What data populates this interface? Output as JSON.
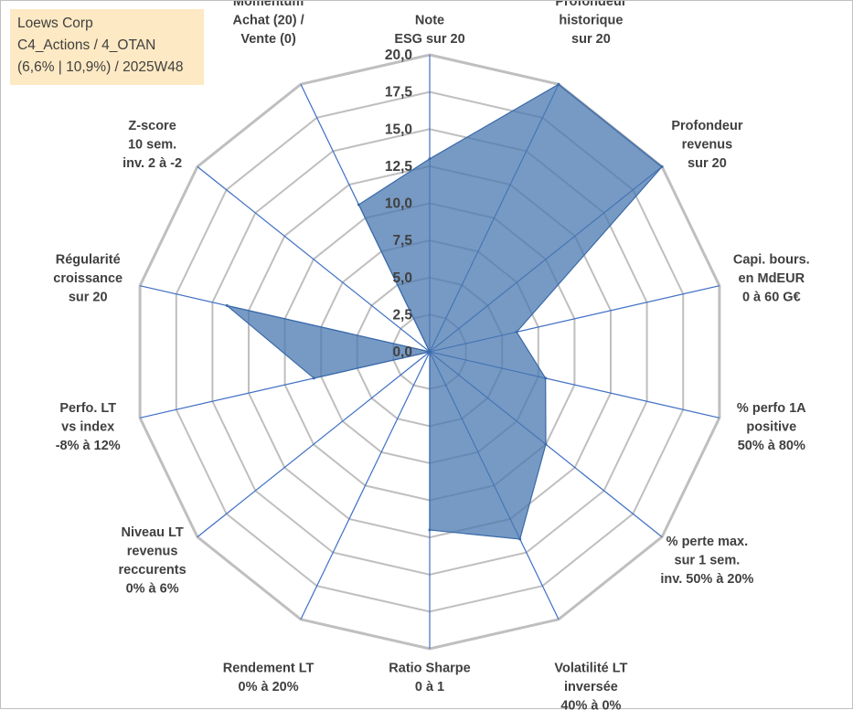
{
  "title_box": {
    "line1": "Loews Corp",
    "line2": "C4_Actions / 4_OTAN",
    "line3": "(6,6% | 10,9%) / 2025W48"
  },
  "chart_data": {
    "type": "radar",
    "rmin": 0,
    "rmax": 20,
    "ticks": [
      "0,0",
      "2,5",
      "5,0",
      "7,5",
      "10,0",
      "12,5",
      "15,0",
      "17,5",
      "20,0"
    ],
    "axes": [
      {
        "label": [
          "Note",
          "ESG sur 20"
        ]
      },
      {
        "label": [
          "Profondeur",
          "historique",
          "sur 20"
        ]
      },
      {
        "label": [
          "Profondeur",
          "revenus",
          "sur 20"
        ]
      },
      {
        "label": [
          "Capi. bours.",
          "en MdEUR",
          "0 à 60 G€"
        ]
      },
      {
        "label": [
          "% perfo 1A",
          "positive",
          "50% à 80%"
        ]
      },
      {
        "label": [
          "% perte max.",
          "sur 1 sem.",
          "inv. 50% à 20%"
        ]
      },
      {
        "label": [
          "Volatilité LT",
          "inversée",
          "40% à 0%"
        ]
      },
      {
        "label": [
          "Ratio Sharpe",
          "0 à 1"
        ]
      },
      {
        "label": [
          "Rendement LT",
          "0% à 20%"
        ]
      },
      {
        "label": [
          "Niveau LT",
          "revenus",
          "reccurents",
          "0% à 6%"
        ]
      },
      {
        "label": [
          "Perfo. LT",
          "vs index",
          "-8% à 12%"
        ]
      },
      {
        "label": [
          "Régularité",
          "croissance",
          "sur 20"
        ]
      },
      {
        "label": [
          "Z-score",
          "10 sem.",
          "inv. 2 à -2"
        ]
      },
      {
        "label": [
          "Momentum",
          "Achat (20) /",
          "Vente (0)"
        ]
      }
    ],
    "series": [
      {
        "values": [
          13.0,
          20.0,
          20.0,
          6.0,
          8.0,
          10.0,
          14.0,
          12.0,
          0.0,
          0.0,
          8.0,
          14.0,
          0.0,
          11.0
        ]
      }
    ],
    "colors": {
      "fill": "#4a78b0",
      "stroke": "#3a6aa8",
      "grid": "#bfbfbf",
      "spoke": "#3f6fc4"
    }
  }
}
